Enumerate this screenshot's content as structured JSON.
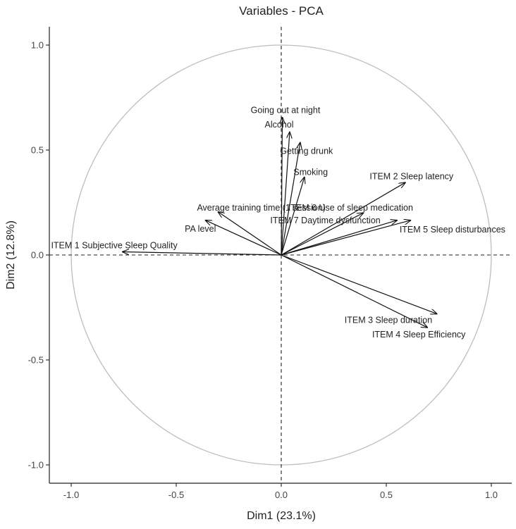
{
  "chart_data": {
    "type": "scatter",
    "title": "Variables - PCA",
    "xlabel": "Dim1 (23.1%)",
    "ylabel": "Dim2 (12.8%)",
    "xlim": [
      -1.1,
      1.1
    ],
    "ylim": [
      -1.1,
      1.1
    ],
    "x_ticks": [
      -1.0,
      -0.5,
      0.0,
      0.5,
      1.0
    ],
    "y_ticks": [
      -1.0,
      -0.5,
      0.0,
      0.5,
      1.0
    ],
    "x_tick_labels": [
      "-1.0",
      "-0.5",
      "0.0",
      "0.5",
      "1.0"
    ],
    "y_tick_labels": [
      "-1.0",
      "-0.5",
      "0.0",
      "0.5",
      "1.0"
    ],
    "grid": false,
    "unit_circle": true,
    "reference_lines": {
      "x": 0,
      "y": 0,
      "style": "dashed"
    },
    "colors": {
      "arrow": "#111111",
      "circle": "#bdbdbd",
      "axis": "#222222",
      "text": "#222222"
    },
    "vectors": [
      {
        "name": "Going out at night",
        "x": 0.005,
        "y": 0.655,
        "label_x": 0.02,
        "label_y": 0.69,
        "anchor": "middle"
      },
      {
        "name": "Alcohol",
        "x": 0.04,
        "y": 0.585,
        "label_x": -0.01,
        "label_y": 0.62,
        "anchor": "middle"
      },
      {
        "name": "Getting drunk",
        "x": 0.09,
        "y": 0.535,
        "label_x": 0.12,
        "label_y": 0.495,
        "anchor": "middle"
      },
      {
        "name": "Smoking",
        "x": 0.11,
        "y": 0.37,
        "label_x": 0.14,
        "label_y": 0.395,
        "anchor": "middle"
      },
      {
        "name": "ITEM 2 Sleep latency",
        "x": 0.59,
        "y": 0.345,
        "label_x": 0.62,
        "label_y": 0.375,
        "anchor": "middle"
      },
      {
        "name": "Average training time (1 session)",
        "x": -0.3,
        "y": 0.205,
        "label_x": -0.095,
        "label_y": 0.225,
        "anchor": "middle"
      },
      {
        "name": "ITEM 6 Use of sleep medication",
        "x": 0.39,
        "y": 0.2,
        "label_x": 0.33,
        "label_y": 0.225,
        "anchor": "middle"
      },
      {
        "name": "ITEM 7 Daytime dysfunction",
        "x": 0.55,
        "y": 0.165,
        "label_x": 0.21,
        "label_y": 0.165,
        "anchor": "middle"
      },
      {
        "name": "ITEM 5 Sleep disturbances",
        "x": 0.615,
        "y": 0.165,
        "label_x": 0.815,
        "label_y": 0.12,
        "anchor": "middle"
      },
      {
        "name": "PA level",
        "x": -0.36,
        "y": 0.165,
        "label_x": -0.385,
        "label_y": 0.125,
        "anchor": "middle"
      },
      {
        "name": "ITEM 1 Subjective Sleep Quality",
        "x": -0.755,
        "y": 0.015,
        "label_x": -0.795,
        "label_y": 0.045,
        "anchor": "middle"
      },
      {
        "name": "ITEM 3 Sleep duration",
        "x": 0.74,
        "y": -0.28,
        "label_x": 0.51,
        "label_y": -0.31,
        "anchor": "middle"
      },
      {
        "name": "ITEM 4 Sleep Efficiency",
        "x": 0.695,
        "y": -0.345,
        "label_x": 0.655,
        "label_y": -0.38,
        "anchor": "middle"
      }
    ]
  }
}
